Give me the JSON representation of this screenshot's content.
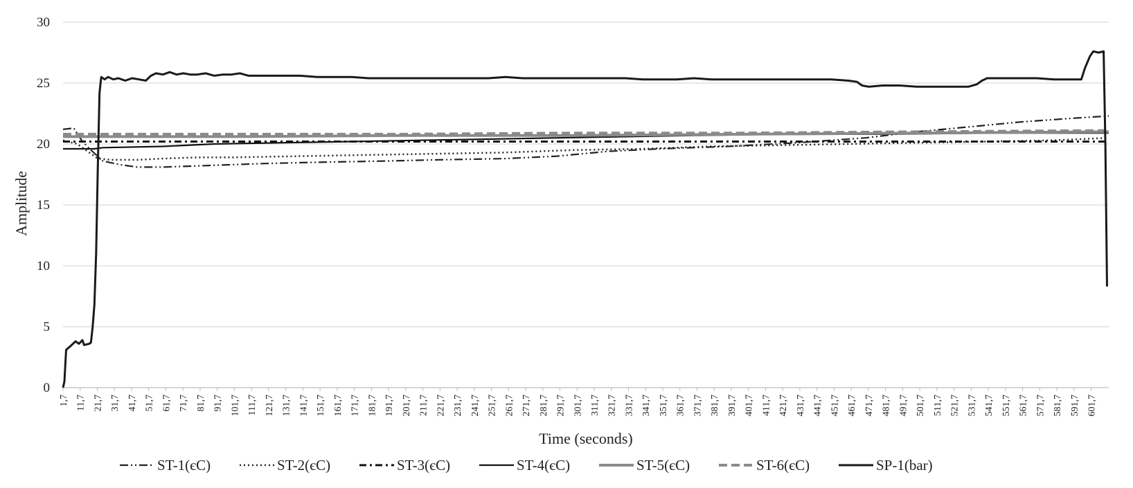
{
  "chart_data": {
    "type": "line",
    "title": "",
    "xlabel": "Time (seconds)",
    "ylabel": "Amplitude",
    "ylim": [
      0,
      30
    ],
    "yticks": [
      "0",
      "5",
      "10",
      "15",
      "20",
      "25",
      "30"
    ],
    "grid": "horizontal",
    "legend_position": "bottom",
    "xticks": [
      "1,7",
      "11,7",
      "21,7",
      "31,7",
      "41,7",
      "51,7",
      "61,7",
      "71,7",
      "81,7",
      "91,7",
      "101,7",
      "111,7",
      "121,7",
      "131,7",
      "141,7",
      "151,7",
      "161,7",
      "171,7",
      "181,7",
      "191,7",
      "201,7",
      "211,7",
      "221,7",
      "231,7",
      "241,7",
      "251,7",
      "261,7",
      "271,7",
      "281,7",
      "291,7",
      "301,7",
      "311,7",
      "321,7",
      "331,7",
      "341,7",
      "351,7",
      "361,7",
      "371,7",
      "381,7",
      "391,7",
      "401,7",
      "411,7",
      "421,7",
      "431,7",
      "441,7",
      "451,7",
      "461,7",
      "471,7",
      "481,7",
      "491,7",
      "501,7",
      "511,7",
      "521,7",
      "531,7",
      "541,7",
      "551,7",
      "561,7",
      "571,7",
      "581,7",
      "591,7",
      "601,7"
    ],
    "series": [
      {
        "name": "ST-1(єC)",
        "color": "#222222",
        "dash": "dash-dot-dot",
        "points": [
          [
            1.7,
            21.2
          ],
          [
            8,
            21.3
          ],
          [
            13,
            20.2
          ],
          [
            18,
            19.5
          ],
          [
            25,
            18.6
          ],
          [
            35,
            18.3
          ],
          [
            45,
            18.1
          ],
          [
            60,
            18.1
          ],
          [
            80,
            18.2
          ],
          [
            100,
            18.3
          ],
          [
            120,
            18.4
          ],
          [
            150,
            18.5
          ],
          [
            190,
            18.6
          ],
          [
            220,
            18.7
          ],
          [
            260,
            18.8
          ],
          [
            290,
            19.0
          ],
          [
            320,
            19.4
          ],
          [
            350,
            19.6
          ],
          [
            390,
            19.8
          ],
          [
            430,
            20.1
          ],
          [
            470,
            20.5
          ],
          [
            500,
            21.0
          ],
          [
            530,
            21.4
          ],
          [
            560,
            21.8
          ],
          [
            590,
            22.1
          ],
          [
            612,
            22.3
          ]
        ]
      },
      {
        "name": "ST-2(єC)",
        "color": "#222222",
        "dash": "dotted",
        "points": [
          [
            1.7,
            20.3
          ],
          [
            10,
            20.0
          ],
          [
            16,
            19.4
          ],
          [
            22,
            18.8
          ],
          [
            30,
            18.7
          ],
          [
            45,
            18.7
          ],
          [
            60,
            18.8
          ],
          [
            80,
            18.9
          ],
          [
            100,
            18.9
          ],
          [
            140,
            19.0
          ],
          [
            180,
            19.1
          ],
          [
            220,
            19.2
          ],
          [
            260,
            19.3
          ],
          [
            300,
            19.5
          ],
          [
            340,
            19.6
          ],
          [
            380,
            19.8
          ],
          [
            420,
            19.9
          ],
          [
            460,
            20.0
          ],
          [
            500,
            20.1
          ],
          [
            540,
            20.2
          ],
          [
            580,
            20.3
          ],
          [
            612,
            20.5
          ]
        ]
      },
      {
        "name": "ST-3(єC)",
        "color": "#111111",
        "dash": "dash-dot",
        "points": [
          [
            1.7,
            20.2
          ],
          [
            30,
            20.2
          ],
          [
            100,
            20.2
          ],
          [
            200,
            20.2
          ],
          [
            300,
            20.2
          ],
          [
            400,
            20.2
          ],
          [
            500,
            20.2
          ],
          [
            612,
            20.2
          ]
        ]
      },
      {
        "name": "ST-4(єC)",
        "color": "#111111",
        "dash": "solid",
        "points": [
          [
            1.7,
            19.6
          ],
          [
            20,
            19.6
          ],
          [
            25,
            19.7
          ],
          [
            60,
            19.8
          ],
          [
            90,
            20.0
          ],
          [
            130,
            20.1
          ],
          [
            170,
            20.2
          ],
          [
            210,
            20.3
          ],
          [
            250,
            20.4
          ],
          [
            290,
            20.5
          ],
          [
            330,
            20.6
          ],
          [
            370,
            20.7
          ],
          [
            420,
            20.8
          ],
          [
            480,
            20.8
          ],
          [
            540,
            20.9
          ],
          [
            612,
            20.9
          ]
        ]
      },
      {
        "name": "ST-5(єC)",
        "color": "#8a8a8a",
        "dash": "solid",
        "points": [
          [
            1.7,
            20.6
          ],
          [
            100,
            20.6
          ],
          [
            200,
            20.7
          ],
          [
            300,
            20.7
          ],
          [
            400,
            20.8
          ],
          [
            500,
            20.9
          ],
          [
            612,
            21.0
          ]
        ]
      },
      {
        "name": "ST-6(єC)",
        "color": "#8a8a8a",
        "dash": "dashed",
        "points": [
          [
            1.7,
            20.8
          ],
          [
            100,
            20.8
          ],
          [
            200,
            20.8
          ],
          [
            300,
            20.9
          ],
          [
            400,
            20.9
          ],
          [
            500,
            21.0
          ],
          [
            612,
            21.1
          ]
        ]
      },
      {
        "name": "SP-1(bar)",
        "color": "#1a1a1a",
        "dash": "solid",
        "points": [
          [
            1.7,
            0
          ],
          [
            2.5,
            0.5
          ],
          [
            3.5,
            3.1
          ],
          [
            6,
            3.4
          ],
          [
            9,
            3.8
          ],
          [
            11,
            3.6
          ],
          [
            13,
            3.9
          ],
          [
            14,
            3.5
          ],
          [
            17,
            3.6
          ],
          [
            18,
            3.7
          ],
          [
            19,
            5
          ],
          [
            20,
            6.8
          ],
          [
            21,
            11
          ],
          [
            22,
            18
          ],
          [
            23,
            24.2
          ],
          [
            24,
            25.5
          ],
          [
            26,
            25.3
          ],
          [
            28,
            25.5
          ],
          [
            31,
            25.3
          ],
          [
            34,
            25.4
          ],
          [
            38,
            25.2
          ],
          [
            42,
            25.4
          ],
          [
            46,
            25.3
          ],
          [
            50,
            25.2
          ],
          [
            53,
            25.6
          ],
          [
            56,
            25.8
          ],
          [
            60,
            25.7
          ],
          [
            64,
            25.9
          ],
          [
            68,
            25.7
          ],
          [
            72,
            25.8
          ],
          [
            76,
            25.7
          ],
          [
            80,
            25.7
          ],
          [
            85,
            25.8
          ],
          [
            90,
            25.6
          ],
          [
            95,
            25.7
          ],
          [
            100,
            25.7
          ],
          [
            105,
            25.8
          ],
          [
            110,
            25.6
          ],
          [
            115,
            25.6
          ],
          [
            120,
            25.6
          ],
          [
            130,
            25.6
          ],
          [
            140,
            25.6
          ],
          [
            150,
            25.5
          ],
          [
            160,
            25.5
          ],
          [
            170,
            25.5
          ],
          [
            180,
            25.4
          ],
          [
            190,
            25.4
          ],
          [
            200,
            25.4
          ],
          [
            210,
            25.4
          ],
          [
            220,
            25.4
          ],
          [
            230,
            25.4
          ],
          [
            240,
            25.4
          ],
          [
            250,
            25.4
          ],
          [
            260,
            25.5
          ],
          [
            270,
            25.4
          ],
          [
            280,
            25.4
          ],
          [
            290,
            25.4
          ],
          [
            300,
            25.4
          ],
          [
            310,
            25.4
          ],
          [
            320,
            25.4
          ],
          [
            330,
            25.4
          ],
          [
            340,
            25.3
          ],
          [
            350,
            25.3
          ],
          [
            360,
            25.3
          ],
          [
            370,
            25.4
          ],
          [
            380,
            25.3
          ],
          [
            390,
            25.3
          ],
          [
            400,
            25.3
          ],
          [
            410,
            25.3
          ],
          [
            420,
            25.3
          ],
          [
            430,
            25.3
          ],
          [
            440,
            25.3
          ],
          [
            450,
            25.3
          ],
          [
            460,
            25.2
          ],
          [
            465,
            25.1
          ],
          [
            468,
            24.8
          ],
          [
            472,
            24.7
          ],
          [
            480,
            24.8
          ],
          [
            490,
            24.8
          ],
          [
            500,
            24.7
          ],
          [
            510,
            24.7
          ],
          [
            520,
            24.7
          ],
          [
            530,
            24.7
          ],
          [
            535,
            24.9
          ],
          [
            538,
            25.2
          ],
          [
            541,
            25.4
          ],
          [
            550,
            25.4
          ],
          [
            560,
            25.4
          ],
          [
            570,
            25.4
          ],
          [
            580,
            25.3
          ],
          [
            590,
            25.3
          ],
          [
            596,
            25.3
          ],
          [
            598,
            26.2
          ],
          [
            601,
            27.2
          ],
          [
            603,
            27.6
          ],
          [
            606,
            27.5
          ],
          [
            609,
            27.6
          ],
          [
            610,
            20
          ],
          [
            611,
            8.3
          ]
        ]
      }
    ]
  }
}
